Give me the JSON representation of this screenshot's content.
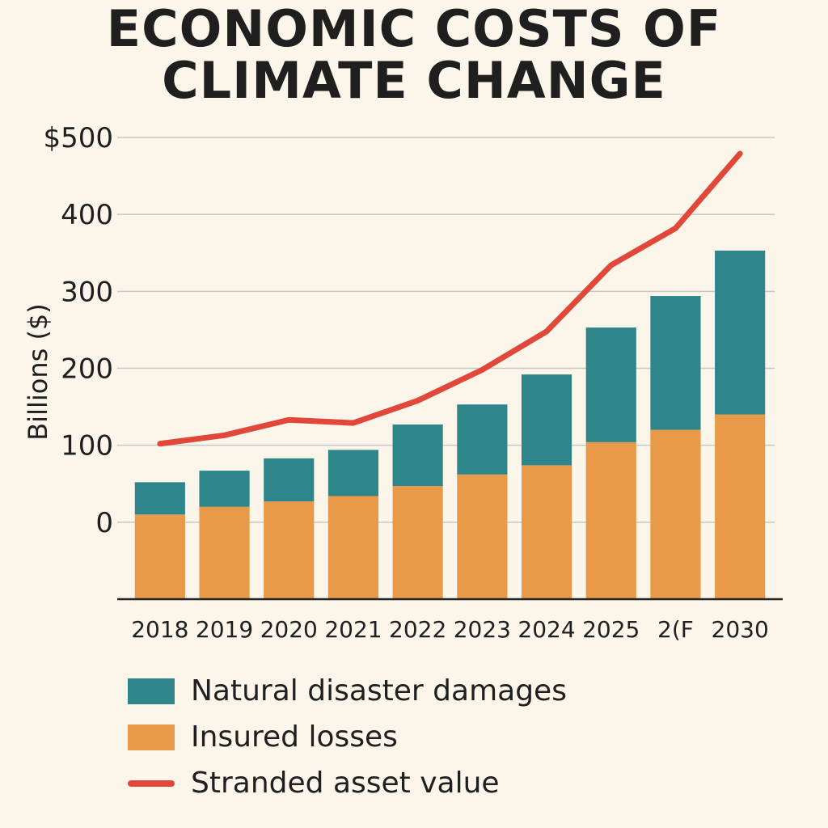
{
  "title_lines": [
    "ECONOMIC COSTS OF",
    "CLIMATE CHANGE"
  ],
  "colors": {
    "background": "#fbf5ea",
    "natural": "#2e868b",
    "insured": "#e99a48",
    "stranded": "#e1483a",
    "grid": "#c8c8c8",
    "axis": "#222222"
  },
  "chart_data": {
    "type": "bar",
    "title": "ECONOMIC COSTS OF CLIMATE CHANGE",
    "ylabel": "Billions ($)",
    "xlabel": "",
    "y_axis": {
      "ticks": [
        0,
        100,
        200,
        300,
        400,
        500
      ],
      "tick_labels": [
        "0",
        "100",
        "200",
        "300",
        "400",
        "$500"
      ],
      "range": [
        -100,
        500
      ]
    },
    "categories": [
      "2018",
      "2019",
      "2020",
      "2021",
      "2022",
      "2023",
      "2024",
      "2025",
      "2(F",
      "2030"
    ],
    "stacked": true,
    "series": [
      {
        "name": "Insured losses",
        "kind": "bar",
        "color": "#e99a48",
        "base": [
          -100,
          -100,
          -100,
          -100,
          -100,
          -100,
          -100,
          -100,
          -100,
          -100
        ],
        "values": [
          10,
          20,
          27,
          34,
          47,
          62,
          74,
          104,
          120,
          140
        ]
      },
      {
        "name": "Natural disaster damages",
        "kind": "bar",
        "color": "#2e868b",
        "values": [
          42,
          47,
          56,
          60,
          80,
          91,
          118,
          149,
          174,
          213
        ]
      },
      {
        "name": "Stranded asset value",
        "kind": "line",
        "color": "#e1483a",
        "values": [
          102,
          113,
          133,
          129,
          158,
          198,
          248,
          334,
          382,
          479
        ]
      }
    ],
    "legend": {
      "placement": "bottom",
      "entries": [
        "Natural disaster damages",
        "Insured losses",
        "Stranded asset value"
      ]
    }
  }
}
